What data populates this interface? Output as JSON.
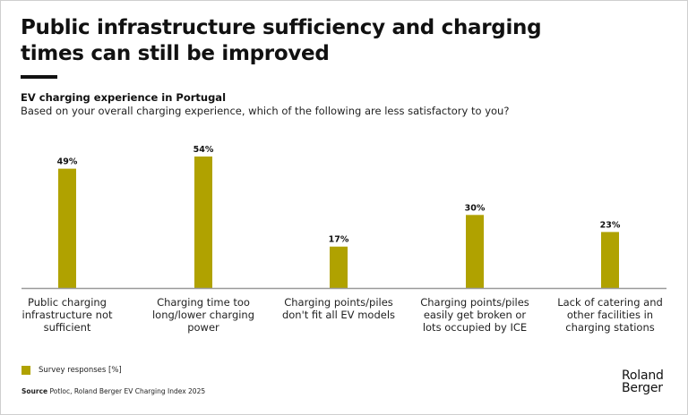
{
  "title": "Public infrastructure sufficiency and charging times can still be improved",
  "subtitle": "EV charging experience in Portugal",
  "question": "Based on your overall charging experience, which of the following are less satisfactory to you?",
  "colors": {
    "bar": "#B0A200",
    "axis": "#9a9a9a",
    "text": "#111111"
  },
  "legend": {
    "label": "Survey responses [%]"
  },
  "source": {
    "prefix": "Source",
    "text": "Potloc, Roland Berger EV Charging Index 2025"
  },
  "logo": {
    "line1": "Roland",
    "line2": "Berger"
  },
  "chart_data": {
    "type": "bar",
    "title": "EV charging experience in Portugal",
    "xlabel": "",
    "ylabel": "Survey responses [%]",
    "ylim": [
      0,
      60
    ],
    "grid": false,
    "legend_position": "bottom-left",
    "categories": [
      "Public charging infrastructure not sufficient",
      "Charging time too long/lower charging power",
      "Charging points/piles don't fit all EV models",
      "Charging points/piles easily get broken or lots occupied by ICE",
      "Lack of catering and other facilities in charging stations"
    ],
    "category_lines": [
      [
        "Public charging",
        "infrastructure not",
        "sufficient"
      ],
      [
        "Charging time too",
        "long/lower charging",
        "power"
      ],
      [
        "Charging points/piles",
        "don't fit all EV models"
      ],
      [
        "Charging points/piles",
        "easily get broken or",
        "lots occupied by ICE"
      ],
      [
        "Lack of catering and",
        "other facilities in",
        "charging stations"
      ]
    ],
    "series": [
      {
        "name": "Survey responses [%]",
        "values": [
          49,
          54,
          17,
          30,
          23
        ]
      }
    ],
    "data_labels": [
      "49%",
      "54%",
      "17%",
      "30%",
      "23%"
    ]
  }
}
